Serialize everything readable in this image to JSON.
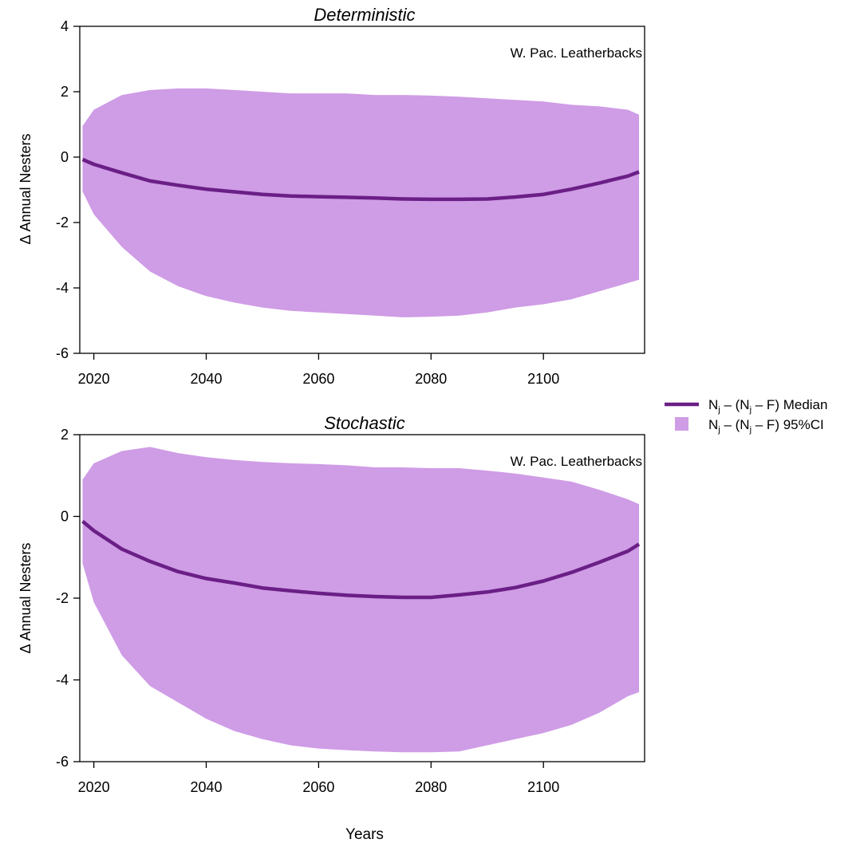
{
  "chart_data": [
    {
      "type": "area",
      "title": "Deterministic",
      "annotation": "W. Pac. Leatherbacks",
      "ylabel": "Δ Annual Nesters",
      "ylim": [
        -6,
        4
      ],
      "yticks": [
        4,
        2,
        0,
        -2,
        -4,
        -6
      ],
      "xlim": [
        2017.5,
        2118
      ],
      "xticks": [
        2020,
        2040,
        2060,
        2080,
        2100
      ],
      "x": [
        2018,
        2020,
        2025,
        2030,
        2035,
        2040,
        2045,
        2050,
        2055,
        2060,
        2065,
        2070,
        2075,
        2080,
        2085,
        2090,
        2095,
        2100,
        2105,
        2110,
        2115,
        2117
      ],
      "series": [
        {
          "name": "Median",
          "values": [
            -0.07,
            -0.22,
            -0.48,
            -0.73,
            -0.86,
            -0.98,
            -1.06,
            -1.14,
            -1.19,
            -1.21,
            -1.23,
            -1.25,
            -1.28,
            -1.29,
            -1.29,
            -1.28,
            -1.22,
            -1.14,
            -0.98,
            -0.79,
            -0.58,
            -0.45
          ]
        },
        {
          "name": "95%CI upper",
          "values": [
            0.95,
            1.45,
            1.9,
            2.05,
            2.1,
            2.1,
            2.05,
            2.0,
            1.95,
            1.95,
            1.95,
            1.9,
            1.9,
            1.88,
            1.85,
            1.8,
            1.75,
            1.7,
            1.6,
            1.55,
            1.45,
            1.3
          ]
        },
        {
          "name": "95%CI lower",
          "values": [
            -1.05,
            -1.75,
            -2.75,
            -3.5,
            -3.95,
            -4.25,
            -4.45,
            -4.6,
            -4.7,
            -4.75,
            -4.8,
            -4.85,
            -4.9,
            -4.88,
            -4.85,
            -4.75,
            -4.6,
            -4.5,
            -4.35,
            -4.1,
            -3.85,
            -3.75
          ]
        }
      ]
    },
    {
      "type": "area",
      "title": "Stochastic",
      "annotation": "W. Pac. Leatherbacks",
      "ylabel": "Δ Annual Nesters",
      "xlabel": "Years",
      "ylim": [
        -6,
        2
      ],
      "yticks": [
        2,
        0,
        -2,
        -4,
        -6
      ],
      "xlim": [
        2017.5,
        2118
      ],
      "xticks": [
        2020,
        2040,
        2060,
        2080,
        2100
      ],
      "x": [
        2018,
        2020,
        2025,
        2030,
        2035,
        2040,
        2045,
        2050,
        2055,
        2060,
        2065,
        2070,
        2075,
        2080,
        2085,
        2090,
        2095,
        2100,
        2105,
        2110,
        2115,
        2117
      ],
      "series": [
        {
          "name": "Median",
          "values": [
            -0.12,
            -0.35,
            -0.8,
            -1.1,
            -1.35,
            -1.52,
            -1.63,
            -1.75,
            -1.82,
            -1.88,
            -1.93,
            -1.96,
            -1.98,
            -1.98,
            -1.92,
            -1.85,
            -1.74,
            -1.58,
            -1.37,
            -1.12,
            -0.85,
            -0.68
          ]
        },
        {
          "name": "95%CI upper",
          "values": [
            0.9,
            1.3,
            1.6,
            1.7,
            1.55,
            1.45,
            1.38,
            1.33,
            1.3,
            1.28,
            1.25,
            1.2,
            1.2,
            1.18,
            1.18,
            1.12,
            1.05,
            0.95,
            0.85,
            0.65,
            0.42,
            0.3
          ]
        },
        {
          "name": "95%CI lower",
          "values": [
            -1.15,
            -2.1,
            -3.4,
            -4.15,
            -4.55,
            -4.95,
            -5.25,
            -5.45,
            -5.6,
            -5.68,
            -5.72,
            -5.75,
            -5.77,
            -5.77,
            -5.75,
            -5.6,
            -5.45,
            -5.3,
            -5.1,
            -4.8,
            -4.4,
            -4.3
          ]
        }
      ]
    }
  ],
  "legend": {
    "position": "right",
    "entries": [
      {
        "base": "N",
        "sub": "j",
        "mid": " – (N",
        "sub2": "j",
        "tail": " – F) Median",
        "kind": "line"
      },
      {
        "base": "N",
        "sub": "j",
        "mid": " – (N",
        "sub2": "j",
        "tail": " – F) 95%CI",
        "kind": "patch"
      }
    ]
  },
  "colors": {
    "median": "#6a1f86",
    "ci": "#cf9ce6",
    "axis": "#000000"
  }
}
